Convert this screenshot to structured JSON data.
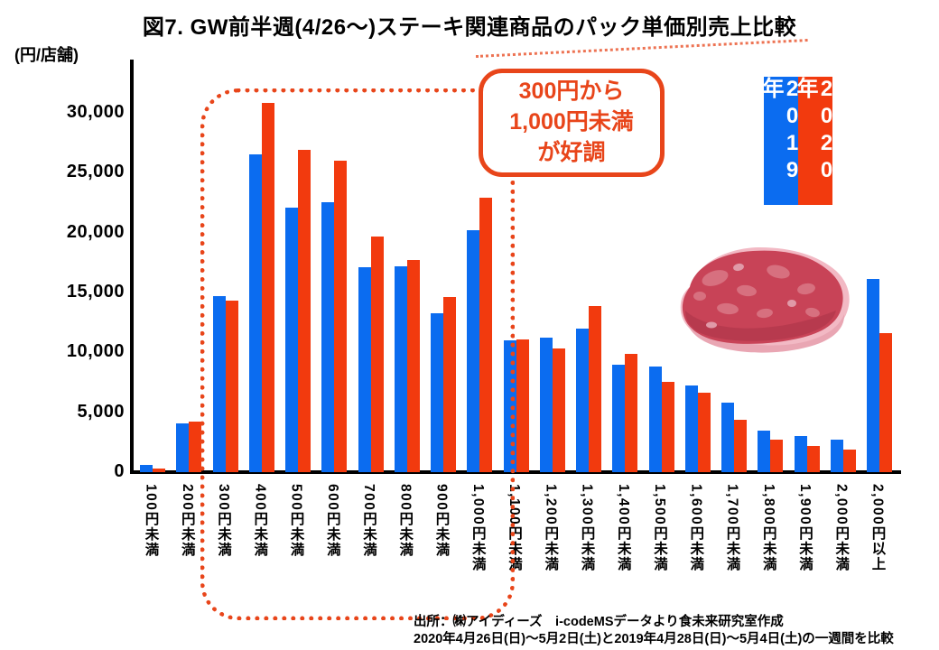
{
  "title": "図7. GW前半週(4/26～)ステーキ関連商品のパック単価別売上比較",
  "y_axis_unit": "(円/店舗)",
  "y_ticks": [
    "30,000",
    "25,000",
    "20,000",
    "15,000",
    "10,000",
    "5,000",
    "0"
  ],
  "legend": [
    {
      "label": "2019年",
      "color": "#0B6CF0"
    },
    {
      "label": "2020年",
      "color": "#F23A0E"
    }
  ],
  "annotation": {
    "lines": [
      "300円から",
      "1,000円未満",
      "が好調"
    ]
  },
  "highlight_range": {
    "from": "300円未満",
    "to": "1,000円未満"
  },
  "illustration": "steak-meat-illustration",
  "footer": {
    "line1": "出所：㈱アイディーズ　i-codeMSデータより食未来研究室作成",
    "line2": "2020年4月26日(日)～5月2日(土)と2019年4月28日(日)～5月4日(土)の一週間を比較"
  },
  "colors": {
    "series_2019": "#0B6CF0",
    "series_2020": "#F23A0E",
    "accent_orange": "#E8451A"
  },
  "chart_data": {
    "type": "bar",
    "title": "図7. GW前半週(4/26～)ステーキ関連商品のパック単価別売上比較",
    "xlabel": "",
    "ylabel": "(円/店舗)",
    "ylim": [
      0,
      32000
    ],
    "y_tick_step": 5000,
    "grid": false,
    "legend_position": "top-right",
    "categories": [
      "100円未満",
      "200円未満",
      "300円未満",
      "400円未満",
      "500円未満",
      "600円未満",
      "700円未満",
      "800円未満",
      "900円未満",
      "1,000円未満",
      "1,100円未満",
      "1,200円未満",
      "1,300円未満",
      "1,400円未満",
      "1,500円未満",
      "1,600円未満",
      "1,700円未満",
      "1,800円未満",
      "1,900円未満",
      "2,000円未満",
      "2,000円以上"
    ],
    "series": [
      {
        "name": "2019年",
        "values": [
          600,
          4100,
          14700,
          26500,
          22100,
          22500,
          17100,
          17200,
          13300,
          20200,
          11000,
          11200,
          12000,
          9000,
          8800,
          7200,
          5800,
          3500,
          3000,
          2700,
          16100
        ]
      },
      {
        "name": "2020年",
        "values": [
          300,
          4200,
          14300,
          30800,
          26900,
          26000,
          19700,
          17700,
          14600,
          22900,
          11100,
          10300,
          13900,
          9900,
          7500,
          6600,
          4400,
          2700,
          2200,
          1900,
          11600
        ]
      }
    ]
  }
}
